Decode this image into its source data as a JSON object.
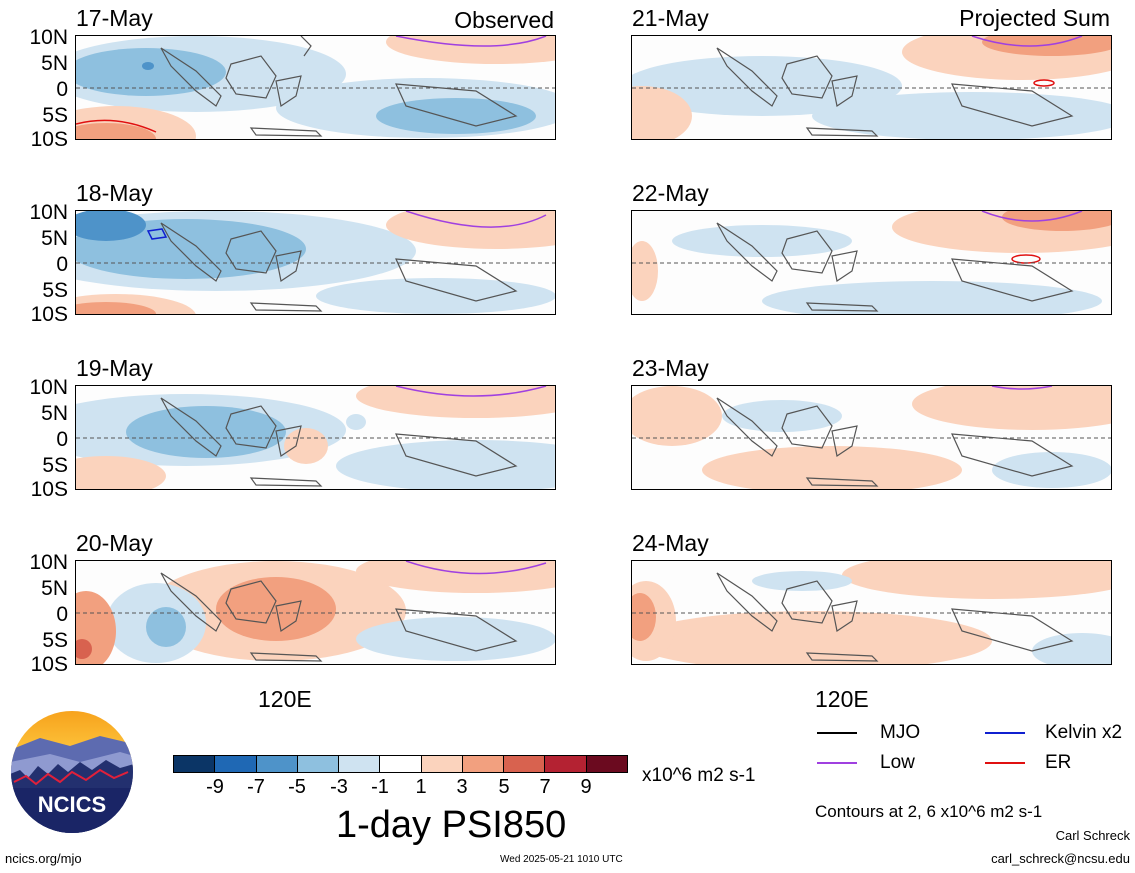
{
  "header": {
    "left_label": "Observed",
    "right_label": "Projected Sum"
  },
  "lat_labels": [
    "10N",
    "5N",
    "0",
    "5S",
    "10S"
  ],
  "lon_label": "120E",
  "panels": [
    {
      "date": "17-May",
      "column": "observed"
    },
    {
      "date": "18-May",
      "column": "observed"
    },
    {
      "date": "19-May",
      "column": "observed"
    },
    {
      "date": "20-May",
      "column": "observed"
    },
    {
      "date": "21-May",
      "column": "projected"
    },
    {
      "date": "22-May",
      "column": "projected"
    },
    {
      "date": "23-May",
      "column": "projected"
    },
    {
      "date": "24-May",
      "column": "projected"
    }
  ],
  "colorbar": {
    "ticks": [
      "-9",
      "-7",
      "-5",
      "-3",
      "-1",
      "1",
      "3",
      "5",
      "7",
      "9"
    ],
    "colors": [
      "#0b3566",
      "#1f68b4",
      "#4e93c9",
      "#8ec0df",
      "#cfe3f1",
      "#ffffff",
      "#fbd3bd",
      "#f2a07f",
      "#d8624f",
      "#b42232",
      "#6b0a1f"
    ],
    "units": "x10^6 m2 s-1"
  },
  "title": "1-day PSI850",
  "legend": [
    {
      "label": "MJO",
      "color": "#000000"
    },
    {
      "label": "Kelvin x2",
      "color": "#1020d0"
    },
    {
      "label": "Low",
      "color": "#a040e0"
    },
    {
      "label": "ER",
      "color": "#e01010"
    }
  ],
  "contour_note": "Contours at 2, 6 x10^6 m2 s-1",
  "logo_text": "NCICS",
  "footer": {
    "url": "ncics.org/mjo",
    "timestamp": "Wed 2025-05-21 1010 UTC",
    "author": "Carl Schreck",
    "email": "carl_schreck@ncsu.edu"
  }
}
